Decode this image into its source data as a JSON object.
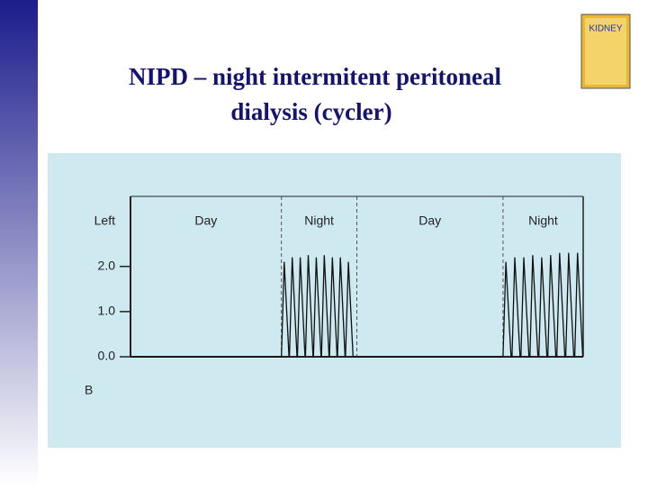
{
  "slide": {
    "title_lines": [
      "NIPD – night intermitent peritoneal",
      "dialysis (cycler)"
    ]
  },
  "book_cover": {
    "title": "KIDNEY"
  },
  "chart_data": {
    "type": "line",
    "panel_label": "B",
    "xlim": [
      0,
      48
    ],
    "ylim": [
      0,
      3.55
    ],
    "yticks": [
      {
        "value": 0,
        "label": "0.0"
      },
      {
        "value": 1,
        "label": "1.0"
      },
      {
        "value": 2,
        "label": "2.0"
      },
      {
        "value": 3,
        "label": "Left"
      }
    ],
    "periods": [
      {
        "label": "Day",
        "start": 0,
        "end": 16
      },
      {
        "label": "Night",
        "start": 16,
        "end": 24
      },
      {
        "label": "Day",
        "start": 24,
        "end": 39.5
      },
      {
        "label": "Night",
        "start": 39.5,
        "end": 48
      }
    ],
    "series": [
      {
        "color": "#111111",
        "x": [
          0,
          16.0,
          16.3,
          16.8,
          16.85,
          17.15,
          17.65,
          17.7,
          18.0,
          18.5,
          18.55,
          18.85,
          19.35,
          19.4,
          19.7,
          20.2,
          20.25,
          20.55,
          21.05,
          21.1,
          21.4,
          21.9,
          21.95,
          22.25,
          22.75,
          22.8,
          23.1,
          23.6,
          39.5,
          39.8,
          40.35,
          40.45,
          40.75,
          41.3,
          41.4,
          41.7,
          42.25,
          42.35,
          42.65,
          43.2,
          43.3,
          43.6,
          44.15,
          44.25,
          44.55,
          45.1,
          45.2,
          45.5,
          46.05,
          46.15,
          46.45,
          47.0,
          47.1,
          47.4,
          47.95,
          48
        ],
        "values": [
          0,
          0,
          2.1,
          0,
          0,
          2.2,
          0,
          0,
          2.2,
          0,
          0,
          2.25,
          0,
          0,
          2.2,
          0,
          0,
          2.25,
          0,
          0,
          2.2,
          0,
          0,
          2.2,
          0,
          0,
          2.1,
          0,
          0,
          2.1,
          0,
          0,
          2.2,
          0,
          0,
          2.2,
          0,
          0,
          2.25,
          0,
          0,
          2.2,
          0,
          0,
          2.25,
          0,
          0,
          2.3,
          0,
          0,
          2.3,
          0,
          0,
          2.3,
          0,
          0
        ]
      }
    ]
  }
}
